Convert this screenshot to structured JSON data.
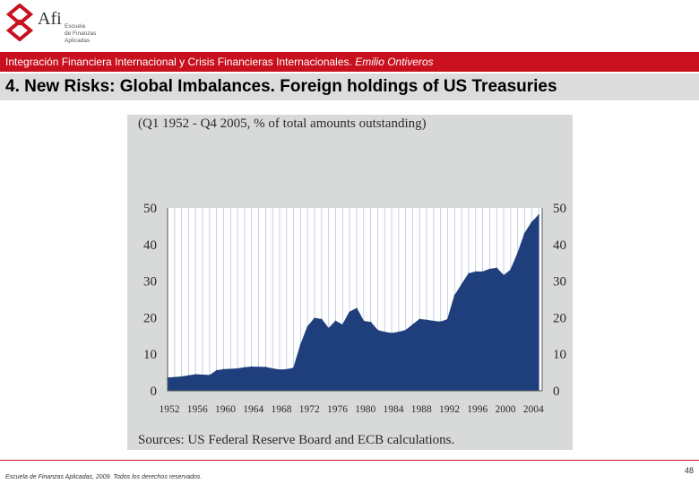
{
  "brand": {
    "name": "Afi",
    "sub_line1": "Escuela",
    "sub_line2": "de Finanzas",
    "sub_line3": "Aplicadas",
    "logo_color": "#c8101e"
  },
  "header": {
    "course": "Integración Financiera Internacional y Crisis Financieras Internacionales.",
    "author": "Emilio Ontiveros",
    "bar_color": "#c8101e"
  },
  "slide": {
    "title": "4. New Risks: Global Imbalances. Foreign holdings of US Treasuries"
  },
  "chart_data": {
    "type": "area",
    "title": "(Q1 1952 - Q4 2005, % of total amounts outstanding)",
    "source": "Sources: US Federal Reserve Board and ECB calculations.",
    "xlabel": "",
    "ylabel": "",
    "ylim": [
      0,
      50
    ],
    "yticks": [
      "0",
      "10",
      "20",
      "30",
      "40",
      "50"
    ],
    "xticks": [
      "1952",
      "1956",
      "1960",
      "1964",
      "1968",
      "1972",
      "1976",
      "1980",
      "1984",
      "1988",
      "1992",
      "1996",
      "2000",
      "2004"
    ],
    "grid": true,
    "fill_color": "#1e3f7c",
    "x": [
      1952,
      1954,
      1955,
      1956,
      1958,
      1959,
      1960,
      1962,
      1963,
      1964,
      1966,
      1967,
      1968,
      1969,
      1970,
      1971,
      1972,
      1973,
      1974,
      1975,
      1976,
      1977,
      1978,
      1979,
      1980,
      1981,
      1982,
      1983,
      1984,
      1985,
      1986,
      1987,
      1988,
      1989,
      1990,
      1991,
      1992,
      1993,
      1994,
      1995,
      1996,
      1997,
      1998,
      1999,
      2000,
      2001,
      2002,
      2003,
      2004,
      2005
    ],
    "values": [
      3.5,
      3.8,
      4.1,
      4.4,
      4.2,
      5.5,
      5.8,
      6.0,
      6.3,
      6.5,
      6.4,
      6.0,
      5.7,
      5.8,
      6.2,
      12.5,
      17.5,
      19.8,
      19.5,
      17.0,
      19.0,
      18.0,
      21.5,
      22.5,
      19.0,
      18.7,
      16.5,
      16.0,
      15.7,
      16.0,
      16.5,
      18.0,
      19.5,
      19.3,
      19.0,
      18.8,
      19.5,
      26.0,
      29.0,
      32.0,
      32.5,
      32.5,
      33.2,
      33.5,
      31.5,
      33.0,
      37.5,
      43.0,
      46.0,
      48.0
    ]
  },
  "footer": {
    "copyright": "Escuela de Finanzas Aplicadas, 2009. Todos los derechos reservados.",
    "page": "48"
  }
}
